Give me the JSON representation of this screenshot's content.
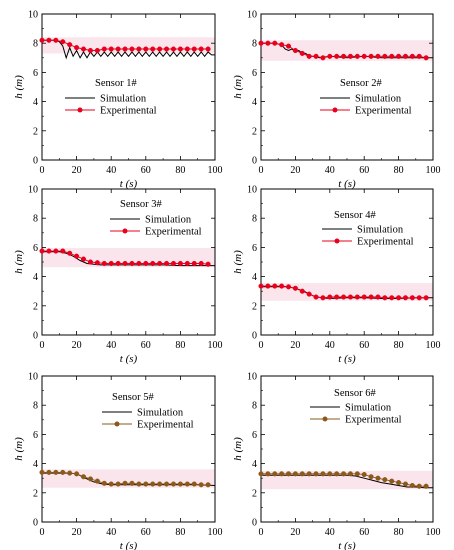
{
  "chart_data": [
    {
      "type": "line",
      "title": "Sensor 1#",
      "xlabel": "t (s)",
      "ylabel": "h (m)",
      "xlim": [
        0,
        100
      ],
      "ylim": [
        0,
        10
      ],
      "xticks": [
        "0",
        "20",
        "40",
        "60",
        "80",
        "100"
      ],
      "yticks": [
        "0",
        "2",
        "4",
        "6",
        "8",
        "10"
      ],
      "legend_position": "top-center",
      "series": [
        {
          "name": "Simulation",
          "style": "line",
          "color": "#000000",
          "x": [
            0,
            4,
            8,
            10,
            12,
            14,
            16,
            18,
            20,
            22,
            24,
            26,
            28,
            30,
            32,
            34,
            36,
            38,
            40,
            42,
            44,
            46,
            48,
            50,
            52,
            54,
            56,
            58,
            60,
            62,
            64,
            66,
            68,
            70,
            72,
            74,
            76,
            78,
            80,
            82,
            84,
            86,
            88,
            90,
            92,
            94,
            96,
            98,
            100
          ],
          "y": [
            8.2,
            8.2,
            8.2,
            8.1,
            7.8,
            7.0,
            7.7,
            7.1,
            7.5,
            7.0,
            7.4,
            7.0,
            7.4,
            7.1,
            7.4,
            7.1,
            7.4,
            7.1,
            7.4,
            7.1,
            7.4,
            7.1,
            7.4,
            7.1,
            7.4,
            7.1,
            7.4,
            7.1,
            7.4,
            7.1,
            7.4,
            7.1,
            7.4,
            7.1,
            7.4,
            7.1,
            7.4,
            7.1,
            7.4,
            7.1,
            7.4,
            7.1,
            7.4,
            7.1,
            7.4,
            7.1,
            7.4,
            7.2,
            7.2
          ]
        },
        {
          "name": "Experimental",
          "style": "line-marker",
          "color": "#e8001c",
          "x": [
            0,
            4,
            8,
            12,
            16,
            20,
            24,
            28,
            32,
            36,
            40,
            44,
            48,
            52,
            56,
            60,
            64,
            68,
            72,
            76,
            80,
            84,
            88,
            92,
            96
          ],
          "y": [
            8.2,
            8.2,
            8.2,
            8.1,
            7.9,
            7.7,
            7.6,
            7.5,
            7.5,
            7.6,
            7.6,
            7.6,
            7.6,
            7.6,
            7.6,
            7.6,
            7.6,
            7.6,
            7.6,
            7.6,
            7.6,
            7.6,
            7.6,
            7.6,
            7.6
          ]
        }
      ]
    },
    {
      "type": "line",
      "title": "Sensor 2#",
      "xlabel": "t (s)",
      "ylabel": "h (m)",
      "xlim": [
        0,
        100
      ],
      "ylim": [
        0,
        10
      ],
      "xticks": [
        "0",
        "20",
        "40",
        "60",
        "80",
        "100"
      ],
      "yticks": [
        "0",
        "2",
        "4",
        "6",
        "8",
        "10"
      ],
      "legend_position": "center-right",
      "series": [
        {
          "name": "Simulation",
          "style": "line",
          "color": "#000000",
          "x": [
            0,
            8,
            12,
            14,
            16,
            18,
            20,
            22,
            24,
            26,
            28,
            30,
            34,
            40,
            50,
            60,
            70,
            80,
            90,
            100
          ],
          "y": [
            8.0,
            8.0,
            7.9,
            7.6,
            7.5,
            7.6,
            7.4,
            7.5,
            7.3,
            7.3,
            7.1,
            7.1,
            7.0,
            7.1,
            7.0,
            7.1,
            7.0,
            7.0,
            7.0,
            7.0
          ]
        },
        {
          "name": "Experimental",
          "style": "line-marker",
          "color": "#e8001c",
          "x": [
            0,
            4,
            8,
            12,
            16,
            20,
            24,
            28,
            32,
            36,
            40,
            44,
            48,
            52,
            56,
            60,
            64,
            68,
            72,
            76,
            80,
            84,
            88,
            92,
            96
          ],
          "y": [
            8.0,
            8.0,
            8.0,
            7.9,
            7.8,
            7.5,
            7.3,
            7.1,
            7.1,
            7.0,
            7.1,
            7.1,
            7.1,
            7.1,
            7.1,
            7.1,
            7.1,
            7.1,
            7.1,
            7.1,
            7.1,
            7.1,
            7.1,
            7.1,
            7.0
          ]
        }
      ]
    },
    {
      "type": "line",
      "title": "Sensor 3#",
      "xlabel": "t (s)",
      "ylabel": "h (m)",
      "xlim": [
        0,
        100
      ],
      "ylim": [
        0,
        10
      ],
      "xticks": [
        "0",
        "20",
        "40",
        "60",
        "80",
        "100"
      ],
      "yticks": [
        "0",
        "2",
        "4",
        "6",
        "8",
        "10"
      ],
      "legend_position": "top-right",
      "series": [
        {
          "name": "Simulation",
          "style": "line",
          "color": "#000000",
          "x": [
            0,
            10,
            14,
            18,
            22,
            26,
            30,
            34,
            38,
            50,
            60,
            70,
            80,
            90,
            100
          ],
          "y": [
            5.7,
            5.7,
            5.6,
            5.4,
            5.1,
            4.9,
            4.85,
            4.8,
            4.8,
            4.8,
            4.8,
            4.8,
            4.75,
            4.75,
            4.75
          ]
        },
        {
          "name": "Experimental",
          "style": "line-marker",
          "color": "#e8001c",
          "x": [
            0,
            4,
            8,
            12,
            16,
            20,
            24,
            28,
            32,
            36,
            40,
            44,
            48,
            52,
            56,
            60,
            64,
            68,
            72,
            76,
            80,
            84,
            88,
            92,
            96
          ],
          "y": [
            5.75,
            5.75,
            5.75,
            5.75,
            5.6,
            5.4,
            5.2,
            5.0,
            4.95,
            4.9,
            4.9,
            4.9,
            4.9,
            4.9,
            4.9,
            4.9,
            4.9,
            4.9,
            4.9,
            4.9,
            4.9,
            4.9,
            4.9,
            4.9,
            4.85
          ]
        }
      ]
    },
    {
      "type": "line",
      "title": "Sensor 4#",
      "xlabel": "t (s)",
      "ylabel": "h (m)",
      "xlim": [
        0,
        100
      ],
      "ylim": [
        0,
        10
      ],
      "xticks": [
        "0",
        "20",
        "40",
        "60",
        "80",
        "100"
      ],
      "yticks": [
        "0",
        "2",
        "4",
        "6",
        "8",
        "10"
      ],
      "legend_position": "center-right",
      "series": [
        {
          "name": "Simulation",
          "style": "line",
          "color": "#000000",
          "x": [
            0,
            15,
            20,
            25,
            30,
            35,
            40,
            50,
            60,
            70,
            80,
            90,
            100
          ],
          "y": [
            3.3,
            3.3,
            3.2,
            3.0,
            2.7,
            2.55,
            2.5,
            2.55,
            2.55,
            2.5,
            2.5,
            2.55,
            2.55
          ]
        },
        {
          "name": "Experimental",
          "style": "line-marker",
          "color": "#e8001c",
          "x": [
            0,
            4,
            8,
            12,
            16,
            20,
            24,
            28,
            32,
            36,
            40,
            44,
            48,
            52,
            56,
            60,
            64,
            68,
            72,
            76,
            80,
            84,
            88,
            92,
            96
          ],
          "y": [
            3.35,
            3.35,
            3.35,
            3.35,
            3.3,
            3.2,
            3.0,
            2.8,
            2.6,
            2.55,
            2.6,
            2.6,
            2.6,
            2.6,
            2.6,
            2.6,
            2.6,
            2.6,
            2.55,
            2.55,
            2.55,
            2.55,
            2.55,
            2.55,
            2.55
          ]
        }
      ]
    },
    {
      "type": "line",
      "title": "Sensor 5#",
      "xlabel": "t (s)",
      "ylabel": "h (m)",
      "xlim": [
        0,
        100
      ],
      "ylim": [
        0,
        10
      ],
      "xticks": [
        "0",
        "20",
        "40",
        "60",
        "80",
        "100"
      ],
      "yticks": [
        "0",
        "2",
        "4",
        "6",
        "8",
        "10"
      ],
      "legend_position": "center",
      "series": [
        {
          "name": "Simulation",
          "style": "line",
          "color": "#000000",
          "x": [
            0,
            15,
            20,
            25,
            30,
            35,
            40,
            50,
            60,
            70,
            80,
            90,
            100
          ],
          "y": [
            3.35,
            3.35,
            3.3,
            3.0,
            2.75,
            2.6,
            2.55,
            2.55,
            2.55,
            2.55,
            2.55,
            2.55,
            2.5
          ]
        },
        {
          "name": "Experimental",
          "style": "line-marker",
          "color": "#8b5a1a",
          "x": [
            0,
            4,
            8,
            12,
            16,
            20,
            24,
            28,
            32,
            36,
            40,
            44,
            48,
            52,
            56,
            60,
            64,
            68,
            72,
            76,
            80,
            84,
            88,
            92,
            96
          ],
          "y": [
            3.4,
            3.4,
            3.4,
            3.4,
            3.35,
            3.3,
            3.1,
            2.95,
            2.8,
            2.65,
            2.6,
            2.6,
            2.65,
            2.65,
            2.6,
            2.6,
            2.6,
            2.6,
            2.6,
            2.6,
            2.6,
            2.6,
            2.6,
            2.55,
            2.55
          ]
        }
      ]
    },
    {
      "type": "line",
      "title": "Sensor 6#",
      "xlabel": "t (s)",
      "ylabel": "h (m)",
      "xlim": [
        0,
        100
      ],
      "ylim": [
        0,
        10
      ],
      "xticks": [
        "0",
        "20",
        "40",
        "60",
        "80",
        "100"
      ],
      "yticks": [
        "0",
        "2",
        "4",
        "6",
        "8",
        "10"
      ],
      "legend_position": "top-center",
      "series": [
        {
          "name": "Simulation",
          "style": "line",
          "color": "#000000",
          "x": [
            0,
            10,
            20,
            30,
            40,
            50,
            55,
            60,
            65,
            70,
            75,
            80,
            85,
            90,
            95,
            100
          ],
          "y": [
            3.2,
            3.2,
            3.2,
            3.2,
            3.2,
            3.2,
            3.15,
            3.0,
            2.85,
            2.7,
            2.6,
            2.5,
            2.4,
            2.4,
            2.35,
            2.35
          ]
        },
        {
          "name": "Experimental",
          "style": "line-marker",
          "color": "#8b5a1a",
          "x": [
            0,
            4,
            8,
            12,
            16,
            20,
            24,
            28,
            32,
            36,
            40,
            44,
            48,
            52,
            56,
            60,
            64,
            68,
            72,
            76,
            80,
            84,
            88,
            92,
            96
          ],
          "y": [
            3.3,
            3.3,
            3.3,
            3.3,
            3.3,
            3.3,
            3.3,
            3.3,
            3.3,
            3.3,
            3.3,
            3.3,
            3.3,
            3.3,
            3.3,
            3.25,
            3.1,
            3.0,
            2.9,
            2.8,
            2.7,
            2.6,
            2.5,
            2.45,
            2.45
          ]
        }
      ]
    }
  ]
}
